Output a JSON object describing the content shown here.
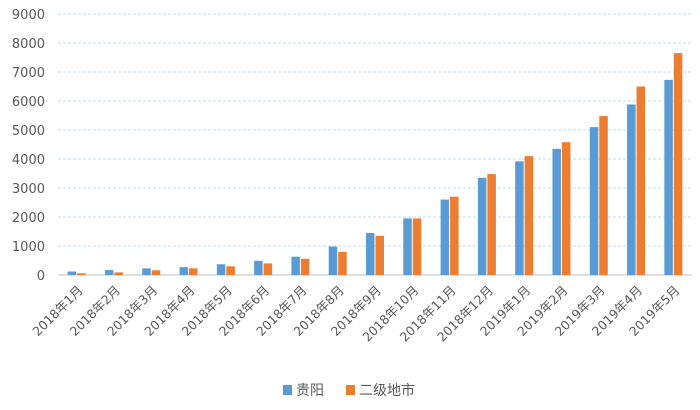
{
  "chart_data": {
    "type": "bar",
    "categories": [
      "2018年1月",
      "2018年2月",
      "2018年3月",
      "2018年4月",
      "2018年5月",
      "2018年6月",
      "2018年7月",
      "2018年8月",
      "2018年9月",
      "2018年10月",
      "2018年11月",
      "2018年12月",
      "2019年1月",
      "2019年2月",
      "2019年3月",
      "2019年4月",
      "2019年5月"
    ],
    "series": [
      {
        "name": "贵阳",
        "color": "#5b9bd5",
        "values": [
          120,
          170,
          230,
          270,
          370,
          490,
          630,
          980,
          1450,
          1950,
          2600,
          3350,
          3920,
          4350,
          5100,
          5880,
          6730
        ]
      },
      {
        "name": "二级地市",
        "color": "#ed7d31",
        "values": [
          60,
          90,
          160,
          230,
          300,
          400,
          560,
          800,
          1350,
          1950,
          2700,
          3480,
          4100,
          4580,
          5480,
          6500,
          7650
        ]
      }
    ],
    "ylim": [
      0,
      9000
    ],
    "yticks": [
      0,
      1000,
      2000,
      3000,
      4000,
      5000,
      6000,
      7000,
      8000,
      9000
    ],
    "grid": true,
    "legend_position": "bottom"
  }
}
